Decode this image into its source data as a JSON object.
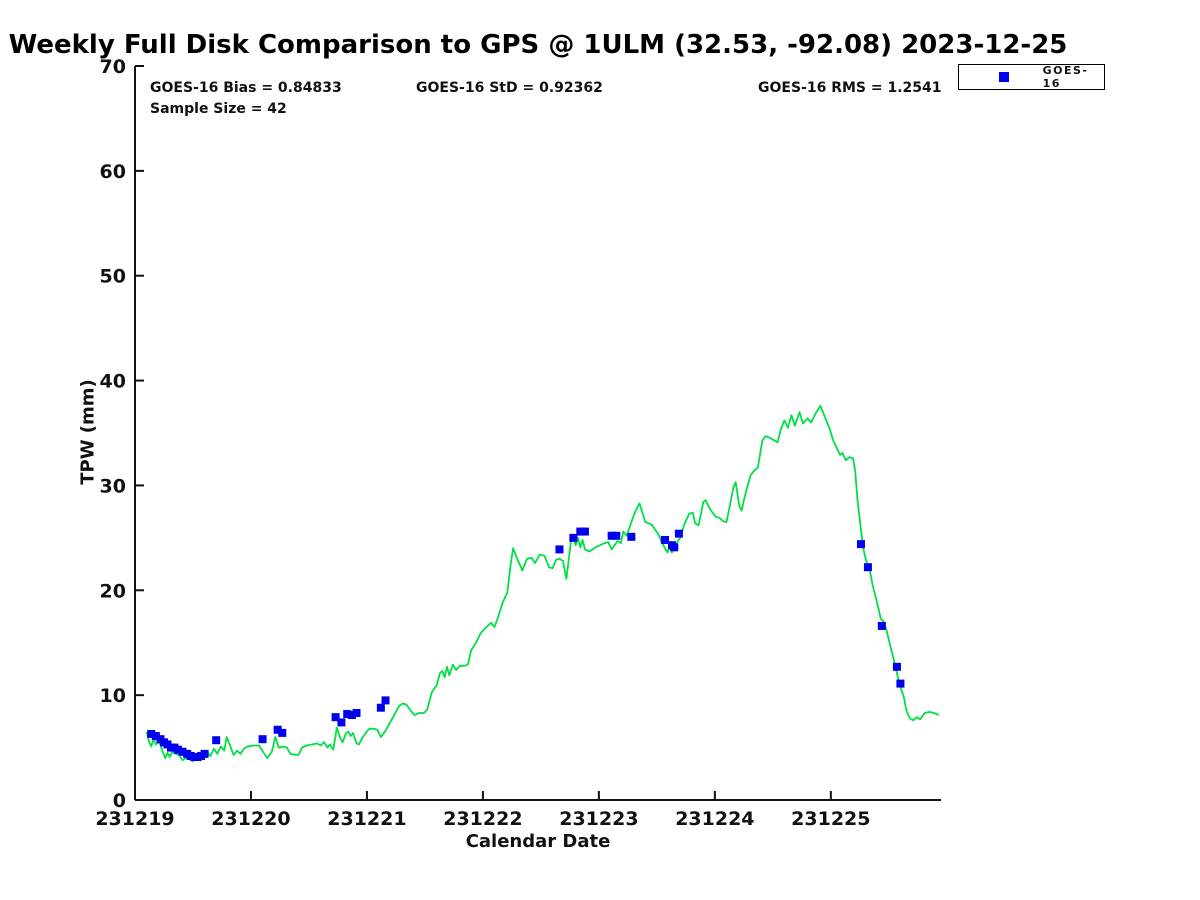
{
  "chart": {
    "title": "Weekly Full Disk Comparison to GPS @ 1ULM (32.53, -92.08) 2023-12-25",
    "stats": {
      "bias": "GOES-16 Bias = 0.84833",
      "std": "GOES-16 StD = 0.92362",
      "rms": "GOES-16 RMS = 1.2541",
      "sample": "Sample Size = 42"
    },
    "legend": {
      "label": "GOES-16"
    },
    "xlabel": "Calendar Date",
    "ylabel": "TPW (mm)",
    "colors": {
      "line": "#00e045",
      "marker": "#0000ee",
      "axis": "#111111",
      "background": "#ffffff"
    }
  },
  "chart_data": {
    "type": "line+scatter",
    "title": "Weekly Full Disk Comparison to GPS @ 1ULM (32.53, -92.08) 2023-12-25",
    "xlabel": "Calendar Date",
    "ylabel": "TPW (mm)",
    "x_axis": "days since 231219 (YYMMDD calendar dates)",
    "xlim_days": [
      0,
      6.95
    ],
    "ylim": [
      0,
      70
    ],
    "grid": false,
    "legend_position": "top-right-outside",
    "x_ticks": [
      {
        "day": 0,
        "label": "231219"
      },
      {
        "day": 1,
        "label": "231220"
      },
      {
        "day": 2,
        "label": "231221"
      },
      {
        "day": 3,
        "label": "231222"
      },
      {
        "day": 4,
        "label": "231223"
      },
      {
        "day": 5,
        "label": "231224"
      },
      {
        "day": 6,
        "label": "231225"
      }
    ],
    "y_ticks": [
      0,
      10,
      20,
      30,
      40,
      50,
      60,
      70
    ],
    "series": [
      {
        "name": "GPS TPW",
        "type": "line",
        "color": "#00e045",
        "points": [
          [
            0.1,
            6.5
          ],
          [
            0.12,
            5.6
          ],
          [
            0.14,
            5.1
          ],
          [
            0.16,
            5.8
          ],
          [
            0.18,
            5.3
          ],
          [
            0.21,
            5.5
          ],
          [
            0.24,
            4.6
          ],
          [
            0.26,
            4.0
          ],
          [
            0.28,
            4.5
          ],
          [
            0.3,
            4.1
          ],
          [
            0.32,
            4.6
          ],
          [
            0.35,
            4.4
          ],
          [
            0.38,
            4.3
          ],
          [
            0.41,
            3.8
          ],
          [
            0.44,
            4.0
          ],
          [
            0.47,
            3.9
          ],
          [
            0.5,
            3.7
          ],
          [
            0.53,
            4.1
          ],
          [
            0.56,
            4.1
          ],
          [
            0.59,
            4.2
          ],
          [
            0.62,
            4.6
          ],
          [
            0.65,
            4.2
          ],
          [
            0.68,
            4.9
          ],
          [
            0.71,
            4.4
          ],
          [
            0.74,
            5.1
          ],
          [
            0.77,
            4.7
          ],
          [
            0.79,
            6.0
          ],
          [
            0.82,
            5.2
          ],
          [
            0.85,
            4.3
          ],
          [
            0.88,
            4.7
          ],
          [
            0.91,
            4.4
          ],
          [
            0.94,
            4.9
          ],
          [
            0.97,
            5.1
          ],
          [
            1.02,
            5.2
          ],
          [
            1.07,
            5.2
          ],
          [
            1.11,
            4.5
          ],
          [
            1.14,
            4.0
          ],
          [
            1.18,
            4.6
          ],
          [
            1.21,
            6.0
          ],
          [
            1.24,
            5.0
          ],
          [
            1.28,
            5.1
          ],
          [
            1.31,
            5.0
          ],
          [
            1.34,
            4.4
          ],
          [
            1.38,
            4.3
          ],
          [
            1.41,
            4.3
          ],
          [
            1.44,
            5.0
          ],
          [
            1.48,
            5.2
          ],
          [
            1.53,
            5.3
          ],
          [
            1.57,
            5.4
          ],
          [
            1.6,
            5.2
          ],
          [
            1.63,
            5.5
          ],
          [
            1.66,
            5.0
          ],
          [
            1.68,
            5.3
          ],
          [
            1.71,
            4.8
          ],
          [
            1.74,
            6.9
          ],
          [
            1.77,
            5.9
          ],
          [
            1.79,
            5.5
          ],
          [
            1.82,
            6.4
          ],
          [
            1.84,
            6.5
          ],
          [
            1.86,
            6.1
          ],
          [
            1.88,
            6.4
          ],
          [
            1.91,
            5.4
          ],
          [
            1.93,
            5.3
          ],
          [
            1.96,
            5.9
          ],
          [
            1.99,
            6.4
          ],
          [
            2.02,
            6.8
          ],
          [
            2.06,
            6.8
          ],
          [
            2.09,
            6.7
          ],
          [
            2.12,
            6.0
          ],
          [
            2.16,
            6.6
          ],
          [
            2.2,
            7.4
          ],
          [
            2.24,
            8.2
          ],
          [
            2.28,
            9.0
          ],
          [
            2.31,
            9.2
          ],
          [
            2.34,
            9.1
          ],
          [
            2.38,
            8.5
          ],
          [
            2.41,
            8.1
          ],
          [
            2.45,
            8.3
          ],
          [
            2.49,
            8.3
          ],
          [
            2.52,
            8.6
          ],
          [
            2.56,
            10.3
          ],
          [
            2.6,
            10.9
          ],
          [
            2.63,
            12.1
          ],
          [
            2.65,
            12.3
          ],
          [
            2.67,
            11.7
          ],
          [
            2.69,
            12.7
          ],
          [
            2.71,
            11.9
          ],
          [
            2.74,
            12.9
          ],
          [
            2.77,
            12.4
          ],
          [
            2.8,
            12.8
          ],
          [
            2.84,
            12.8
          ],
          [
            2.87,
            12.9
          ],
          [
            2.9,
            14.3
          ],
          [
            2.94,
            15.0
          ],
          [
            2.98,
            15.9
          ],
          [
            3.03,
            16.5
          ],
          [
            3.07,
            16.9
          ],
          [
            3.1,
            16.5
          ],
          [
            3.13,
            17.4
          ],
          [
            3.17,
            18.8
          ],
          [
            3.21,
            19.8
          ],
          [
            3.24,
            22.5
          ],
          [
            3.26,
            24.0
          ],
          [
            3.3,
            22.9
          ],
          [
            3.34,
            21.9
          ],
          [
            3.38,
            23.0
          ],
          [
            3.42,
            23.1
          ],
          [
            3.45,
            22.6
          ],
          [
            3.49,
            23.4
          ],
          [
            3.53,
            23.3
          ],
          [
            3.57,
            22.2
          ],
          [
            3.6,
            22.1
          ],
          [
            3.63,
            22.9
          ],
          [
            3.66,
            23.0
          ],
          [
            3.69,
            22.8
          ],
          [
            3.72,
            21.1
          ],
          [
            3.76,
            24.8
          ],
          [
            3.78,
            25.1
          ],
          [
            3.8,
            24.3
          ],
          [
            3.82,
            25.0
          ],
          [
            3.84,
            24.1
          ],
          [
            3.86,
            24.8
          ],
          [
            3.88,
            23.9
          ],
          [
            3.92,
            23.7
          ],
          [
            3.97,
            24.1
          ],
          [
            4.01,
            24.3
          ],
          [
            4.05,
            24.5
          ],
          [
            4.08,
            24.6
          ],
          [
            4.11,
            23.9
          ],
          [
            4.13,
            24.2
          ],
          [
            4.16,
            24.7
          ],
          [
            4.19,
            24.5
          ],
          [
            4.21,
            25.6
          ],
          [
            4.24,
            25.2
          ],
          [
            4.28,
            26.5
          ],
          [
            4.31,
            27.4
          ],
          [
            4.35,
            28.3
          ],
          [
            4.4,
            26.5
          ],
          [
            4.43,
            26.4
          ],
          [
            4.46,
            26.2
          ],
          [
            4.49,
            25.7
          ],
          [
            4.52,
            25.2
          ],
          [
            4.54,
            24.6
          ],
          [
            4.57,
            24.0
          ],
          [
            4.59,
            23.6
          ],
          [
            4.61,
            24.1
          ],
          [
            4.63,
            23.6
          ],
          [
            4.66,
            24.3
          ],
          [
            4.7,
            25.0
          ],
          [
            4.74,
            26.4
          ],
          [
            4.78,
            27.3
          ],
          [
            4.81,
            27.4
          ],
          [
            4.83,
            26.4
          ],
          [
            4.86,
            26.2
          ],
          [
            4.9,
            28.4
          ],
          [
            4.92,
            28.6
          ],
          [
            4.95,
            27.9
          ],
          [
            4.98,
            27.4
          ],
          [
            5.01,
            27.0
          ],
          [
            5.04,
            26.9
          ],
          [
            5.07,
            26.6
          ],
          [
            5.1,
            26.5
          ],
          [
            5.13,
            28.1
          ],
          [
            5.16,
            29.8
          ],
          [
            5.18,
            30.3
          ],
          [
            5.21,
            28.1
          ],
          [
            5.23,
            27.6
          ],
          [
            5.27,
            29.5
          ],
          [
            5.31,
            31.0
          ],
          [
            5.34,
            31.4
          ],
          [
            5.37,
            31.7
          ],
          [
            5.41,
            34.3
          ],
          [
            5.44,
            34.7
          ],
          [
            5.48,
            34.5
          ],
          [
            5.51,
            34.3
          ],
          [
            5.54,
            34.1
          ],
          [
            5.57,
            35.4
          ],
          [
            5.6,
            36.2
          ],
          [
            5.63,
            35.5
          ],
          [
            5.66,
            36.7
          ],
          [
            5.69,
            35.7
          ],
          [
            5.73,
            37.0
          ],
          [
            5.76,
            35.9
          ],
          [
            5.8,
            36.4
          ],
          [
            5.83,
            36.0
          ],
          [
            5.87,
            36.9
          ],
          [
            5.91,
            37.6
          ],
          [
            5.95,
            36.5
          ],
          [
            5.99,
            35.4
          ],
          [
            6.02,
            34.3
          ],
          [
            6.05,
            33.6
          ],
          [
            6.08,
            32.9
          ],
          [
            6.1,
            33.1
          ],
          [
            6.13,
            32.4
          ],
          [
            6.16,
            32.7
          ],
          [
            6.19,
            32.6
          ],
          [
            6.21,
            31.4
          ],
          [
            6.23,
            28.6
          ],
          [
            6.25,
            26.7
          ],
          [
            6.28,
            24.0
          ],
          [
            6.3,
            23.0
          ],
          [
            6.32,
            22.4
          ],
          [
            6.34,
            21.7
          ],
          [
            6.36,
            20.5
          ],
          [
            6.39,
            19.2
          ],
          [
            6.41,
            18.3
          ],
          [
            6.43,
            17.3
          ],
          [
            6.45,
            17.1
          ],
          [
            6.48,
            16.2
          ],
          [
            6.51,
            14.8
          ],
          [
            6.54,
            13.5
          ],
          [
            6.56,
            12.6
          ],
          [
            6.58,
            11.6
          ],
          [
            6.6,
            10.8
          ],
          [
            6.63,
            9.8
          ],
          [
            6.65,
            8.6
          ],
          [
            6.68,
            7.8
          ],
          [
            6.71,
            7.6
          ],
          [
            6.74,
            7.9
          ],
          [
            6.77,
            7.7
          ],
          [
            6.81,
            8.3
          ],
          [
            6.85,
            8.4
          ],
          [
            6.89,
            8.3
          ],
          [
            6.93,
            8.1
          ]
        ]
      },
      {
        "name": "GOES-16",
        "type": "scatter",
        "marker": "square",
        "color": "#0000ee",
        "sample_size": 42,
        "points": [
          [
            0.14,
            6.3
          ],
          [
            0.18,
            6.1
          ],
          [
            0.22,
            5.8
          ],
          [
            0.25,
            5.5
          ],
          [
            0.28,
            5.3
          ],
          [
            0.31,
            5.0
          ],
          [
            0.34,
            5.0
          ],
          [
            0.37,
            4.8
          ],
          [
            0.41,
            4.6
          ],
          [
            0.45,
            4.4
          ],
          [
            0.48,
            4.2
          ],
          [
            0.51,
            4.1
          ],
          [
            0.54,
            4.1
          ],
          [
            0.57,
            4.2
          ],
          [
            0.6,
            4.4
          ],
          [
            0.7,
            5.7
          ],
          [
            1.1,
            5.8
          ],
          [
            1.23,
            6.7
          ],
          [
            1.27,
            6.4
          ],
          [
            1.73,
            7.9
          ],
          [
            1.78,
            7.4
          ],
          [
            1.83,
            8.2
          ],
          [
            1.87,
            8.1
          ],
          [
            1.91,
            8.3
          ],
          [
            2.12,
            8.8
          ],
          [
            2.16,
            9.5
          ],
          [
            3.66,
            23.9
          ],
          [
            3.78,
            25.0
          ],
          [
            3.84,
            25.6
          ],
          [
            3.88,
            25.6
          ],
          [
            4.11,
            25.2
          ],
          [
            4.15,
            25.2
          ],
          [
            4.28,
            25.1
          ],
          [
            4.57,
            24.8
          ],
          [
            4.63,
            24.3
          ],
          [
            4.65,
            24.1
          ],
          [
            4.69,
            25.4
          ],
          [
            6.26,
            24.4
          ],
          [
            6.32,
            22.2
          ],
          [
            6.44,
            16.6
          ],
          [
            6.57,
            12.7
          ],
          [
            6.6,
            11.1
          ]
        ]
      }
    ]
  }
}
